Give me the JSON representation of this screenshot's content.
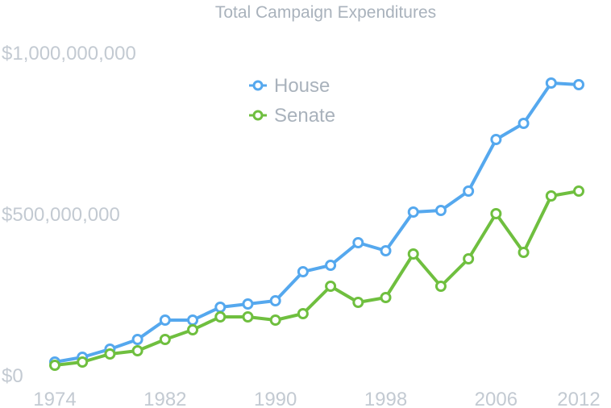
{
  "chart_data": {
    "type": "line",
    "title": "Total Campaign Expenditures",
    "xlabel": "",
    "ylabel": "",
    "x": [
      1974,
      1976,
      1978,
      1980,
      1982,
      1984,
      1986,
      1988,
      1990,
      1992,
      1994,
      1996,
      1998,
      2000,
      2002,
      2004,
      2006,
      2008,
      2010,
      2012
    ],
    "x_ticks": [
      "1974",
      "1982",
      "1990",
      "1998",
      "2006",
      "2012"
    ],
    "y_ticks": [
      "$0",
      "$500,000,000",
      "$1,000,000,000"
    ],
    "ylim": [
      0,
      1000000000
    ],
    "xlim": [
      1974,
      2012
    ],
    "grid": false,
    "legend_position": "top-center",
    "series": [
      {
        "name": "House",
        "color": "#55a8ee",
        "values": [
          40000000,
          55000000,
          80000000,
          110000000,
          170000000,
          170000000,
          210000000,
          220000000,
          230000000,
          320000000,
          340000000,
          410000000,
          385000000,
          505000000,
          510000000,
          570000000,
          730000000,
          780000000,
          905000000,
          900000000
        ]
      },
      {
        "name": "Senate",
        "color": "#6fbf3f",
        "values": [
          30000000,
          40000000,
          65000000,
          75000000,
          110000000,
          140000000,
          180000000,
          180000000,
          170000000,
          190000000,
          275000000,
          225000000,
          240000000,
          375000000,
          275000000,
          360000000,
          500000000,
          380000000,
          555000000,
          570000000
        ]
      }
    ]
  }
}
